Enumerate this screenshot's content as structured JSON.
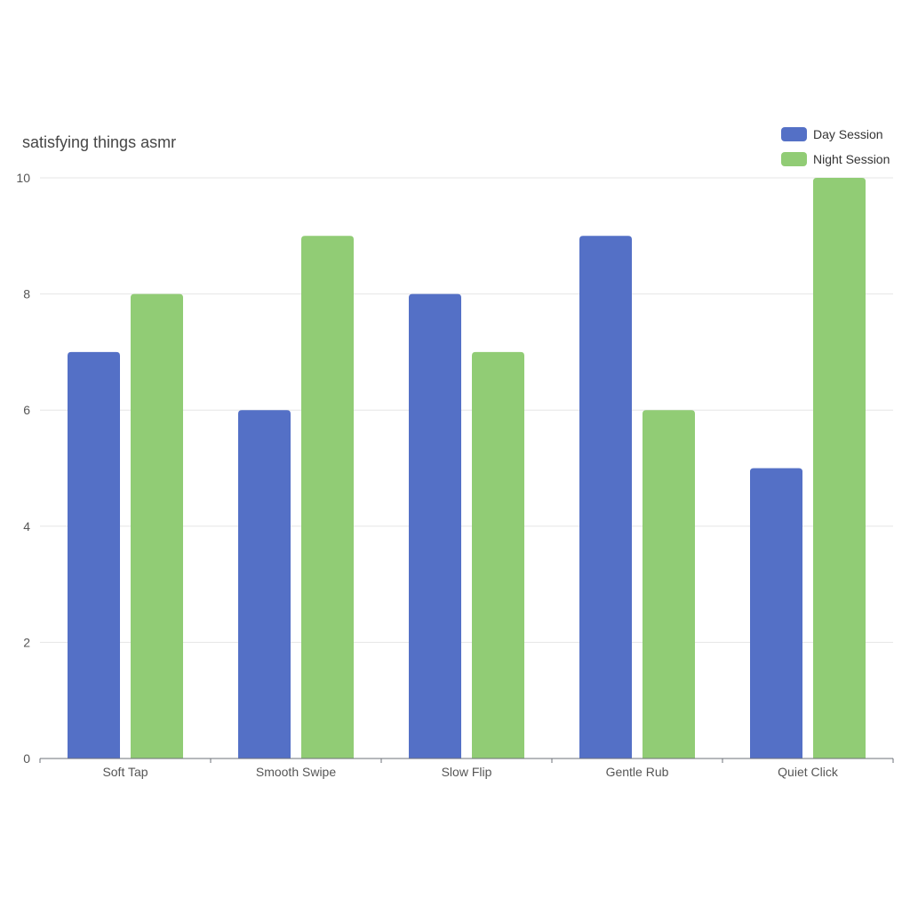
{
  "chart_data": {
    "type": "bar",
    "title": "satisfying things asmr",
    "categories": [
      "Soft Tap",
      "Smooth Swipe",
      "Slow Flip",
      "Gentle Rub",
      "Quiet Click"
    ],
    "series": [
      {
        "name": "Day Session",
        "color": "#5470c6",
        "values": [
          7,
          6,
          8,
          9,
          5
        ]
      },
      {
        "name": "Night Session",
        "color": "#91cc75",
        "values": [
          8,
          9,
          7,
          6,
          10
        ]
      }
    ],
    "yticks": [
      "0",
      "2",
      "4",
      "6",
      "8",
      "10"
    ],
    "ylim": [
      0,
      10
    ],
    "grid": true,
    "legend_position": "top-right",
    "colors": {
      "axis": "#6e7079",
      "grid": "#e6e6e6",
      "text": "#555555",
      "title": "#464646"
    }
  }
}
